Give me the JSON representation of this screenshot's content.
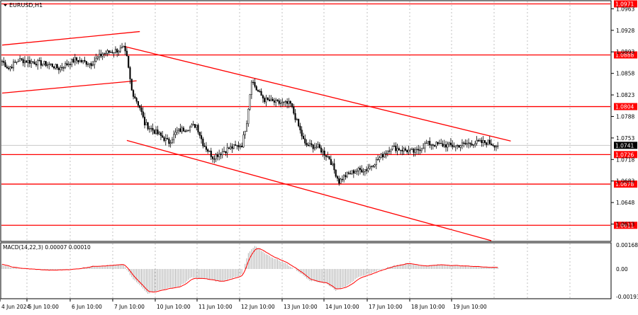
{
  "chart_data": {
    "type": "candlestick",
    "symbol_label": "EURUSD,H1",
    "price_axis": {
      "ylim": [
        1.0586,
        1.0975
      ],
      "ticks": [
        "1.0963",
        "1.0928",
        "1.0893",
        "1.0858",
        "1.0823",
        "1.0788",
        "1.0753",
        "1.0718",
        "1.0683",
        "1.0648",
        "1.0613"
      ]
    },
    "time_axis": {
      "labels": [
        "4 Jun 2024",
        "5 Jun 10:00",
        "6 Jun 10:00",
        "7 Jun 10:00",
        "10 Jun 10:00",
        "11 Jun 10:00",
        "12 Jun 10:00",
        "13 Jun 10:00",
        "14 Jun 10:00",
        "17 Jun 10:00",
        "18 Jun 10:00",
        "19 Jun 10:00"
      ]
    },
    "horizontal_levels": [
      {
        "value": 1.0971,
        "label": "1.0971"
      },
      {
        "value": 1.0888,
        "label": "1.0888"
      },
      {
        "value": 1.0804,
        "label": "1.0804"
      },
      {
        "value": 1.0726,
        "label": "1.0726"
      },
      {
        "value": 1.0678,
        "label": "1.0678"
      },
      {
        "value": 1.0611,
        "label": "1.0611"
      }
    ],
    "current_price": {
      "value": 1.0741,
      "label": "1.0741"
    },
    "trend_lines": [
      {
        "name": "upper-channel-top",
        "from": {
          "bar": 0,
          "price": 1.0904
        },
        "to": {
          "bar": 85,
          "price": 1.0926
        }
      },
      {
        "name": "upper-channel-bottom",
        "from": {
          "bar": 0,
          "price": 1.0826
        },
        "to": {
          "bar": 83,
          "price": 1.0846
        }
      },
      {
        "name": "descending-resistance",
        "from": {
          "bar": 75,
          "price": 1.0902
        },
        "to": {
          "bar": 314,
          "price": 1.0748
        }
      },
      {
        "name": "descending-support",
        "from": {
          "bar": 77,
          "price": 1.0749
        },
        "to": {
          "bar": 302,
          "price": 1.0586
        }
      }
    ],
    "candles_anchor_closes": [
      [
        0,
        1.0878
      ],
      [
        4,
        1.0866
      ],
      [
        10,
        1.088
      ],
      [
        20,
        1.0876
      ],
      [
        30,
        1.0872
      ],
      [
        35,
        1.0866
      ],
      [
        45,
        1.088
      ],
      [
        55,
        1.0874
      ],
      [
        62,
        1.089
      ],
      [
        75,
        1.0898
      ],
      [
        77,
        1.0883
      ],
      [
        80,
        1.083
      ],
      [
        85,
        1.0803
      ],
      [
        88,
        1.0776
      ],
      [
        95,
        1.0762
      ],
      [
        103,
        1.0746
      ],
      [
        108,
        1.0764
      ],
      [
        113,
        1.0768
      ],
      [
        120,
        1.0774
      ],
      [
        124,
        1.0744
      ],
      [
        130,
        1.0722
      ],
      [
        140,
        1.0736
      ],
      [
        148,
        1.0742
      ],
      [
        151,
        1.078
      ],
      [
        154,
        1.0848
      ],
      [
        157,
        1.0832
      ],
      [
        162,
        1.0815
      ],
      [
        170,
        1.081
      ],
      [
        178,
        1.0808
      ],
      [
        183,
        1.0772
      ],
      [
        187,
        1.0742
      ],
      [
        195,
        1.0738
      ],
      [
        202,
        1.072
      ],
      [
        208,
        1.0682
      ],
      [
        211,
        1.069
      ],
      [
        218,
        1.07
      ],
      [
        225,
        1.0702
      ],
      [
        232,
        1.0718
      ],
      [
        240,
        1.0738
      ],
      [
        247,
        1.0734
      ],
      [
        255,
        1.073
      ],
      [
        262,
        1.0744
      ],
      [
        270,
        1.0742
      ],
      [
        280,
        1.074
      ],
      [
        290,
        1.0745
      ],
      [
        300,
        1.0746
      ],
      [
        306,
        1.074
      ]
    ],
    "indicator": {
      "name": "MACD",
      "label": "MACD(14,22,3) 0.00007 0.00010",
      "ylim": [
        -0.00193,
        0.00168
      ],
      "ticks": [
        "0.00168",
        "0.00",
        "-0.00193"
      ],
      "histogram_anchors": [
        [
          0,
          0.0003
        ],
        [
          5,
          0.0001
        ],
        [
          15,
          0.0
        ],
        [
          30,
          -0.0001
        ],
        [
          45,
          0.0
        ],
        [
          55,
          0.0002
        ],
        [
          75,
          0.0003
        ],
        [
          80,
          -0.0006
        ],
        [
          90,
          -0.0017
        ],
        [
          100,
          -0.0014
        ],
        [
          110,
          -0.0012
        ],
        [
          117,
          -0.0006
        ],
        [
          125,
          -0.0007
        ],
        [
          135,
          -0.0009
        ],
        [
          148,
          -0.0004
        ],
        [
          152,
          0.0011
        ],
        [
          156,
          0.0016
        ],
        [
          165,
          0.0009
        ],
        [
          175,
          0.0004
        ],
        [
          183,
          -0.0002
        ],
        [
          190,
          -0.0008
        ],
        [
          200,
          -0.001
        ],
        [
          206,
          -0.0015
        ],
        [
          212,
          -0.0012
        ],
        [
          220,
          -0.0006
        ],
        [
          230,
          -0.0002
        ],
        [
          240,
          0.0002
        ],
        [
          250,
          0.0004
        ],
        [
          260,
          0.0002
        ],
        [
          270,
          0.0003
        ],
        [
          285,
          0.0002
        ],
        [
          306,
          0.0001
        ]
      ]
    },
    "colors": {
      "background": "#ffffff",
      "candle": "#000000",
      "level_line": "#ff0000",
      "trend_line": "#ff0000",
      "label_background": "#ff0000",
      "label_text": "#ffffff",
      "current_price_background": "#000000",
      "grid": "#c0c0c0",
      "macd_histogram": "#b0b0b0",
      "macd_signal": "#ff0000"
    }
  }
}
